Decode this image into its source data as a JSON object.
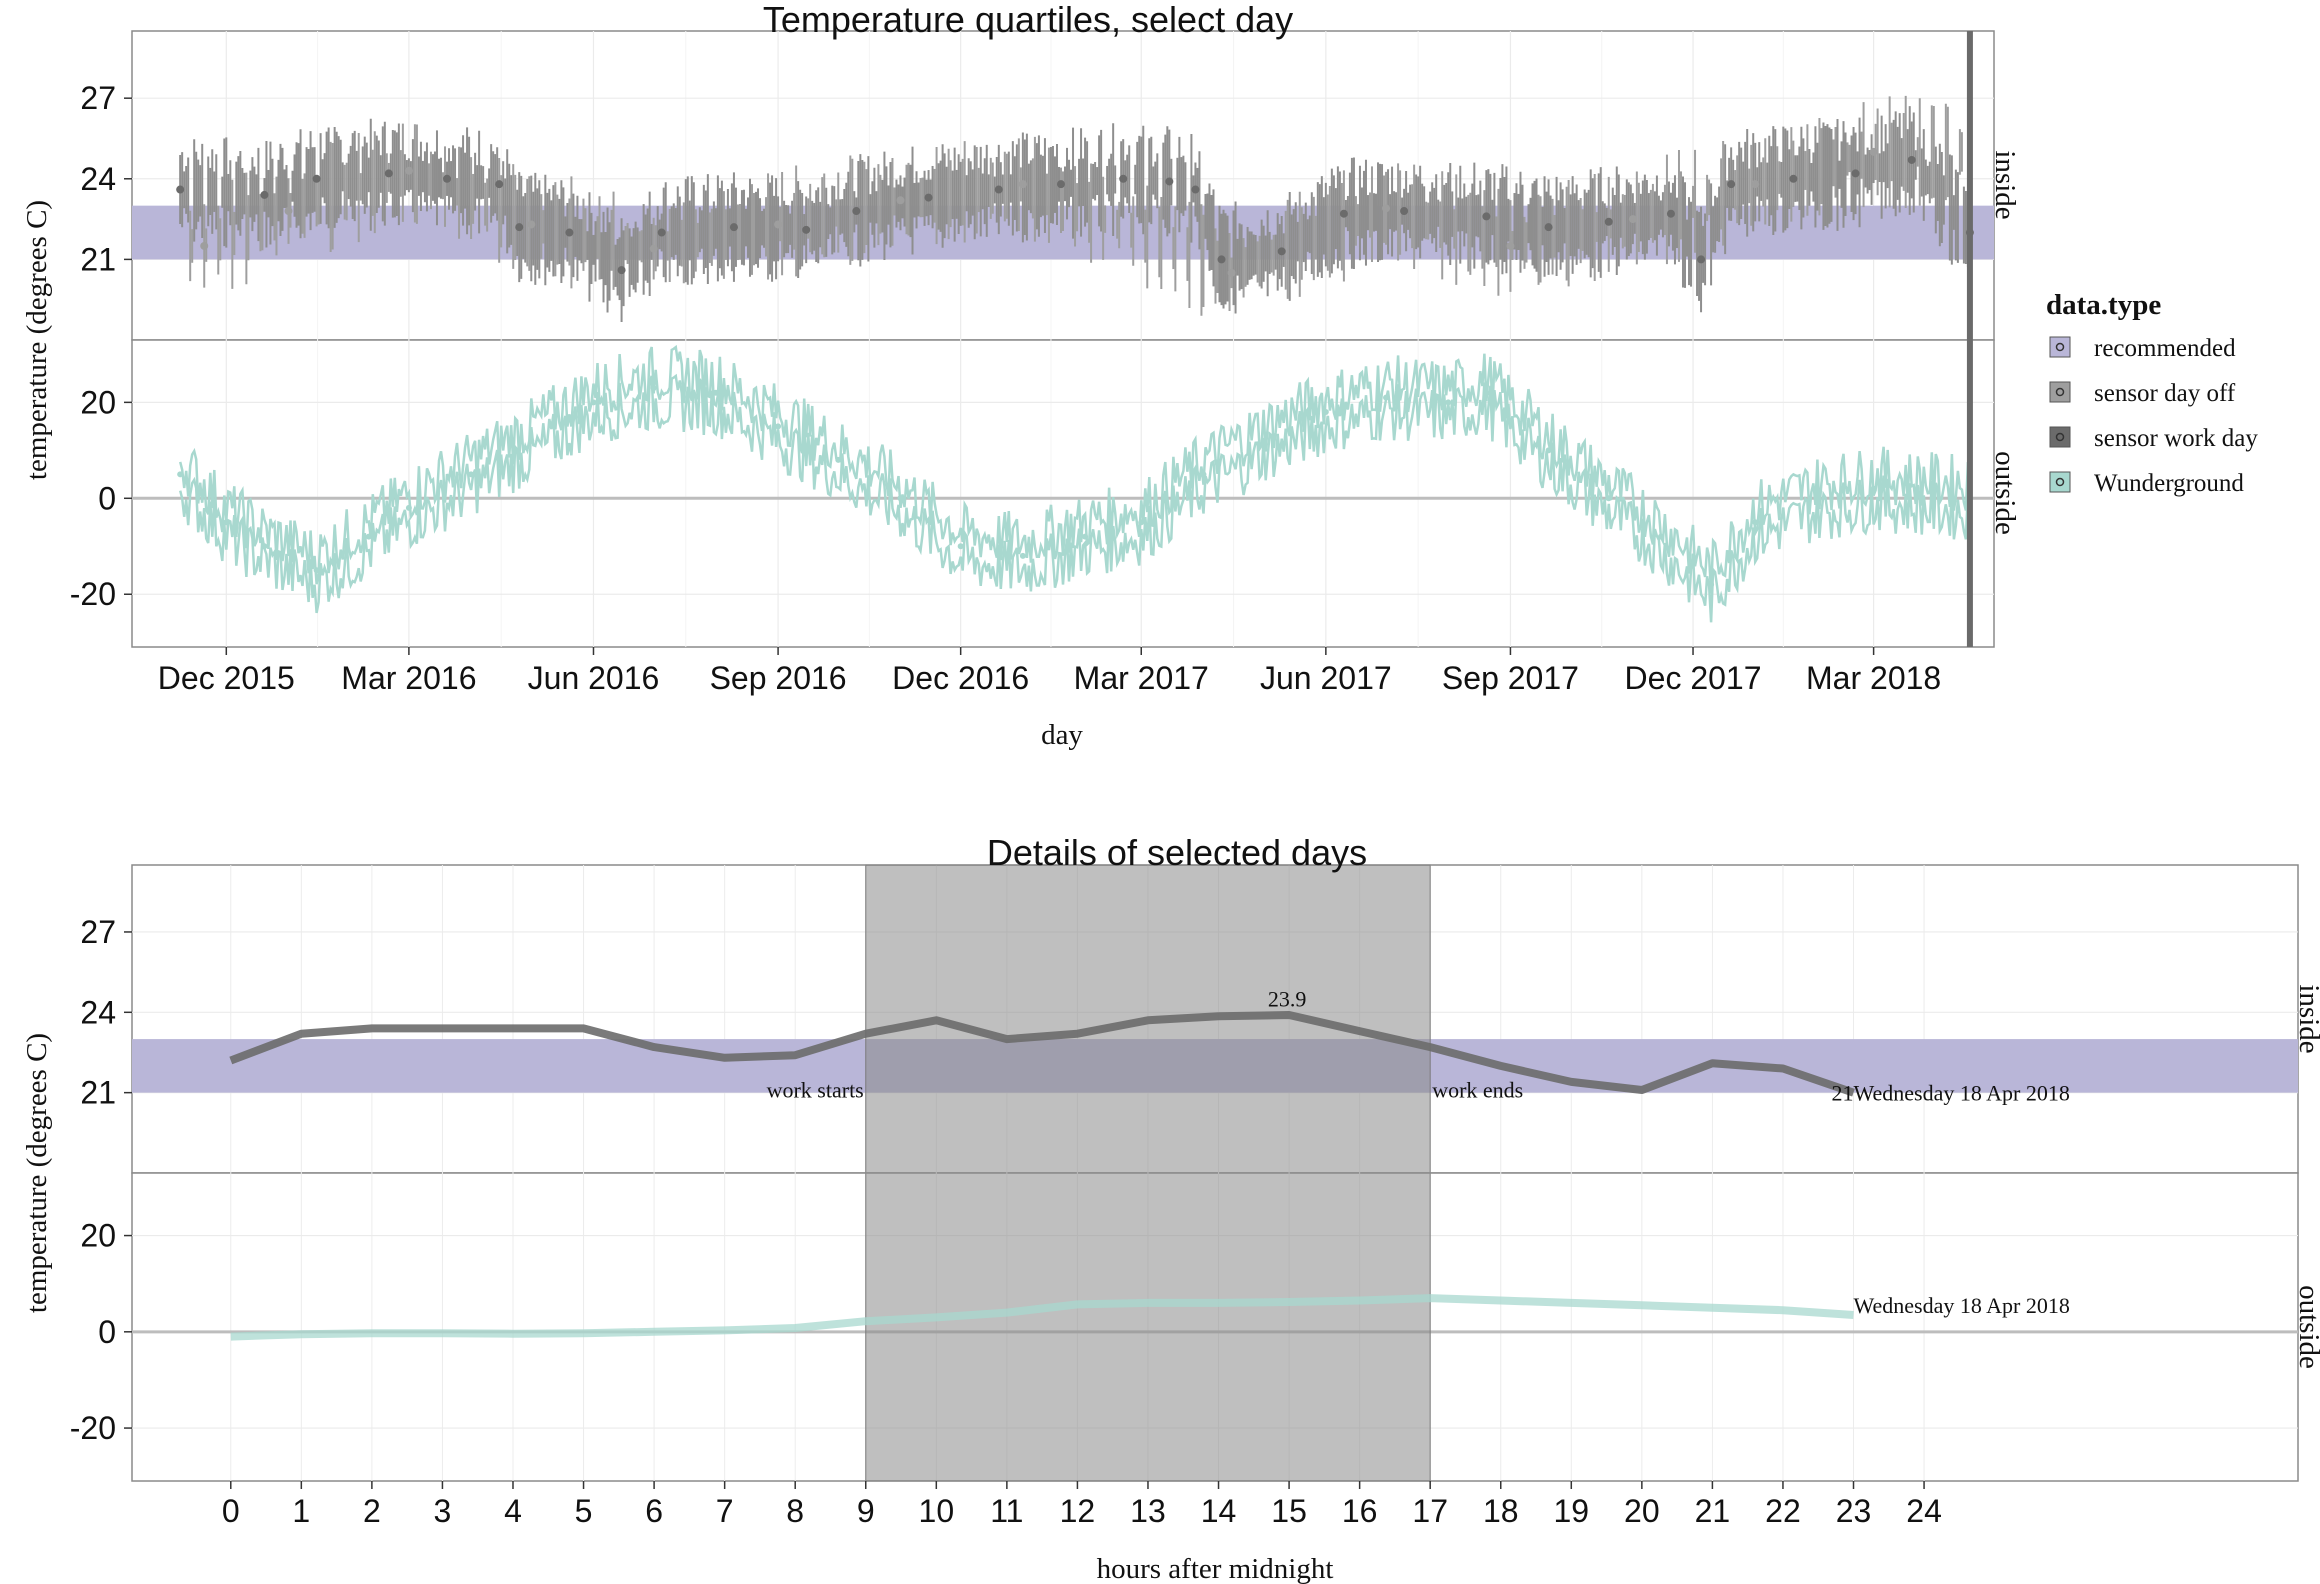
{
  "chart_data": [
    {
      "type": "line",
      "title": "Temperature quartiles, select day",
      "xlabel": "day",
      "ylabel": "temperature (degrees C)",
      "x_ticks": [
        "Dec 2015",
        "Mar 2016",
        "Jun 2016",
        "Sep 2016",
        "Dec 2016",
        "Mar 2017",
        "Jun 2017",
        "Sep 2017",
        "Dec 2017",
        "Mar 2018"
      ],
      "xlim": [
        "2015-10-15",
        "2018-04-30"
      ],
      "selected_day": "2018-04-18",
      "facets": [
        {
          "label": "inside",
          "ylim": [
            18,
            29.5
          ],
          "y_ticks": [
            21,
            24,
            27
          ],
          "recommended_band": [
            21,
            23
          ],
          "series": [
            {
              "name": "sensor work day",
              "x": [
                "2015-11-08",
                "2015-12-20",
                "2016-01-15",
                "2016-02-20",
                "2016-03-20",
                "2016-04-15",
                "2016-04-25",
                "2016-05-20",
                "2016-06-15",
                "2016-07-05",
                "2016-08-10",
                "2016-09-15",
                "2016-10-10",
                "2016-11-15",
                "2016-12-20",
                "2017-01-20",
                "2017-02-20",
                "2017-03-15",
                "2017-03-28",
                "2017-04-10",
                "2017-05-10",
                "2017-06-10",
                "2017-07-10",
                "2017-08-20",
                "2017-09-20",
                "2017-10-20",
                "2017-11-20",
                "2017-12-05",
                "2017-12-20",
                "2018-01-20",
                "2018-02-20",
                "2018-03-20",
                "2018-04-18"
              ],
              "y": [
                23.6,
                23.4,
                24.0,
                24.2,
                24.0,
                23.8,
                22.2,
                22.0,
                20.6,
                22.0,
                22.2,
                22.1,
                22.8,
                23.3,
                23.6,
                23.8,
                24.0,
                23.9,
                23.6,
                21.0,
                21.3,
                22.7,
                22.8,
                22.6,
                22.2,
                22.4,
                22.7,
                21.0,
                23.8,
                24.0,
                24.2,
                24.7,
                22.0
              ]
            },
            {
              "name": "sensor day off",
              "x": [
                "2015-11-20",
                "2016-01-01",
                "2016-03-01",
                "2016-05-01",
                "2016-07-01",
                "2016-09-01",
                "2016-11-01",
                "2017-01-01",
                "2017-04-15",
                "2017-07-01",
                "2017-09-01",
                "2017-11-01",
                "2018-01-01",
                "2018-03-01"
              ],
              "y": [
                21.5,
                22.8,
                24.3,
                22.3,
                21.4,
                22.3,
                23.2,
                23.8,
                20.5,
                22.9,
                21.5,
                22.5,
                23.8,
                25.0
              ]
            }
          ]
        },
        {
          "label": "outside",
          "ylim": [
            -31,
            33
          ],
          "y_ticks": [
            -20,
            0,
            20
          ],
          "series": [
            {
              "name": "Wunderground",
              "x": [
                "2015-11-08",
                "2015-12-01",
                "2015-12-20",
                "2016-01-15",
                "2016-02-10",
                "2016-03-01",
                "2016-04-01",
                "2016-05-01",
                "2016-06-01",
                "2016-07-01",
                "2016-08-01",
                "2016-09-01",
                "2016-10-01",
                "2016-11-01",
                "2016-12-01",
                "2017-01-01",
                "2017-02-01",
                "2017-03-01",
                "2017-04-01",
                "2017-05-01",
                "2017-06-01",
                "2017-07-01",
                "2017-08-01",
                "2017-08-20",
                "2017-09-20",
                "2017-10-20",
                "2017-11-15",
                "2017-12-10",
                "2018-01-01",
                "2018-02-01",
                "2018-03-01",
                "2018-04-18"
              ],
              "y": [
                5,
                -5,
                -10,
                -15,
                -8,
                -2,
                5,
                12,
                20,
                23,
                22,
                15,
                8,
                0,
                -10,
                -12,
                -8,
                -5,
                5,
                12,
                18,
                21,
                20,
                22,
                10,
                0,
                -8,
                -18,
                -5,
                0,
                2,
                0
              ]
            }
          ]
        }
      ],
      "legend": {
        "title": "data.type",
        "placement": "right",
        "entries": [
          {
            "name": "recommended",
            "color": "#b9b6d8"
          },
          {
            "name": "sensor day off",
            "color": "#9e9e9e"
          },
          {
            "name": "sensor work day",
            "color": "#6b6b6b"
          },
          {
            "name": "Wunderground",
            "color": "#a8d8cf"
          }
        ]
      }
    },
    {
      "type": "line",
      "title": "Details of selected days",
      "xlabel": "hours after midnight",
      "ylabel": "temperature (degrees C)",
      "x_ticks": [
        0,
        1,
        2,
        3,
        4,
        5,
        6,
        7,
        8,
        9,
        10,
        11,
        12,
        13,
        14,
        15,
        16,
        17,
        18,
        19,
        20,
        21,
        22,
        23,
        24
      ],
      "xlim": [
        -1.4,
        29.3
      ],
      "work_hours": [
        9,
        17
      ],
      "annotations": [
        {
          "text": "work starts",
          "x": 9,
          "y": 21.2
        },
        {
          "text": "work ends",
          "x": 17,
          "y": 21.2
        },
        {
          "text": "23.9",
          "x": 15,
          "y": 24.0
        }
      ],
      "facets": [
        {
          "label": "inside",
          "ylim": [
            18,
            29.5
          ],
          "y_ticks": [
            21,
            24,
            27
          ],
          "recommended_band": [
            21,
            23
          ],
          "series": [
            {
              "name": "Wednesday 18 Apr 2018",
              "x": [
                0,
                1,
                2,
                3,
                4,
                5,
                6,
                7,
                8,
                9,
                10,
                11,
                12,
                13,
                14,
                15,
                16,
                17,
                18,
                19,
                20,
                21,
                22,
                23
              ],
              "y": [
                22.2,
                23.2,
                23.4,
                23.4,
                23.4,
                23.4,
                22.7,
                22.3,
                22.4,
                23.2,
                23.7,
                23.0,
                23.2,
                23.7,
                23.85,
                23.9,
                23.3,
                22.7,
                22.0,
                21.4,
                21.1,
                22.1,
                21.9,
                21.0
              ],
              "end_label": "21",
              "end_label_text": "Wednesday 18 Apr 2018"
            }
          ]
        },
        {
          "label": "outside",
          "ylim": [
            -31,
            33
          ],
          "y_ticks": [
            -20,
            0,
            20
          ],
          "series": [
            {
              "name": "Wednesday 18 Apr 2018",
              "x": [
                0,
                1,
                2,
                3,
                4,
                5,
                6,
                7,
                8,
                9,
                10,
                11,
                12,
                13,
                14,
                15,
                16,
                17,
                18,
                19,
                20,
                21,
                22,
                23
              ],
              "y": [
                -1,
                -0.5,
                -0.3,
                -0.3,
                -0.4,
                -0.3,
                0,
                0.3,
                0.8,
                2.2,
                3.0,
                4.0,
                5.7,
                6.0,
                6.0,
                6.2,
                6.5,
                7.0,
                6.5,
                6.0,
                5.5,
                5.0,
                4.5,
                3.5
              ],
              "end_label_text": "Wednesday 18 Apr 2018"
            }
          ]
        }
      ]
    }
  ]
}
